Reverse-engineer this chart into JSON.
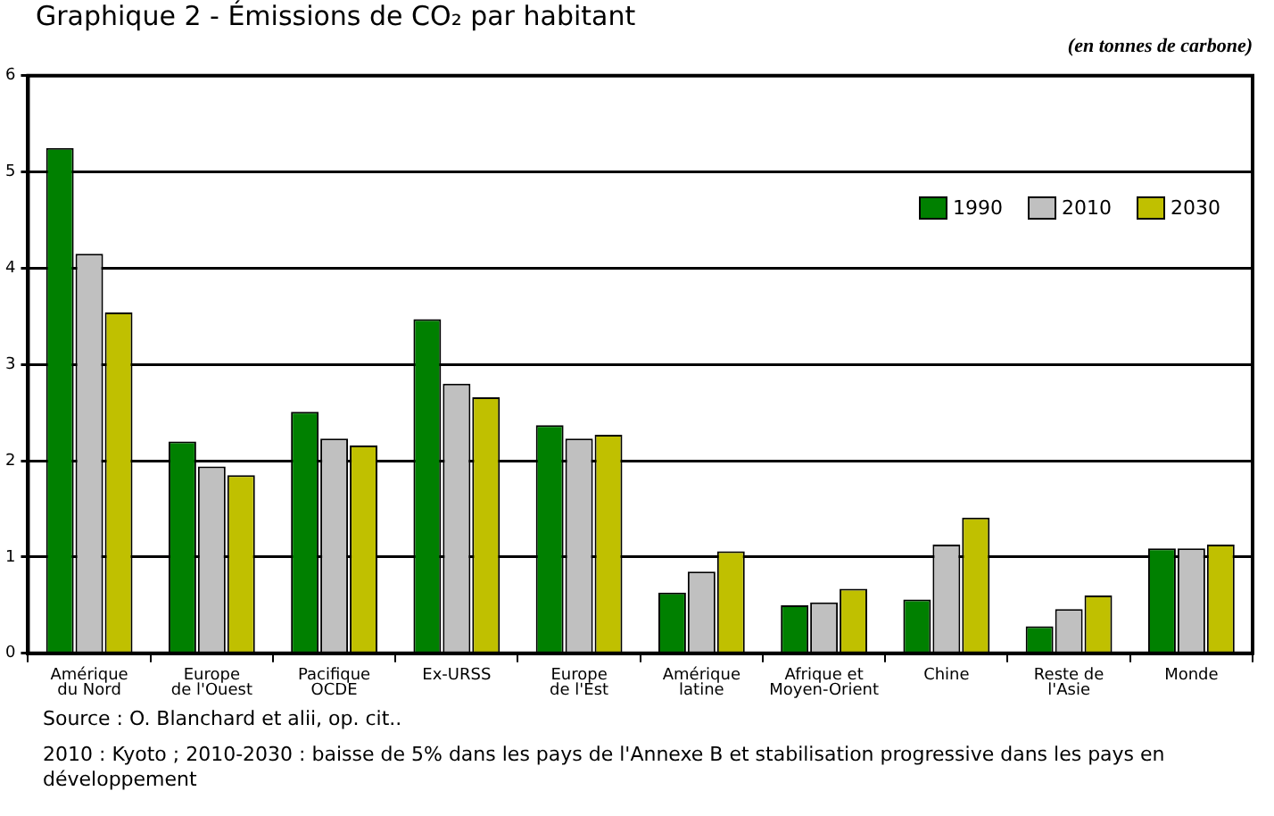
{
  "chart_data": {
    "type": "bar",
    "title": "Graphique 2 - Émissions de CO₂ par habitant",
    "subtitle": "(en tonnes de carbone)",
    "categories": [
      "Amérique\ndu Nord",
      "Europe\nde l'Ouest",
      "Pacifique\nOCDE",
      "Ex-URSS",
      "Europe\nde l'Est",
      "Amérique\nlatine",
      "Afrique et\nMoyen-Orient",
      "Chine",
      "Reste de\nl'Asie",
      "Monde"
    ],
    "series": [
      {
        "name": "1990",
        "color": "#008000",
        "values": [
          5.25,
          2.2,
          2.51,
          3.47,
          2.37,
          0.63,
          0.5,
          0.56,
          0.28,
          1.09
        ]
      },
      {
        "name": "2010",
        "color": "#c0c0c0",
        "values": [
          4.15,
          1.94,
          2.23,
          2.8,
          2.23,
          0.85,
          0.53,
          1.13,
          0.46,
          1.09
        ]
      },
      {
        "name": "2030",
        "color": "#c0c000",
        "values": [
          3.54,
          1.85,
          2.16,
          2.66,
          2.27,
          1.06,
          0.67,
          1.41,
          0.6,
          1.13
        ]
      }
    ],
    "ylim": [
      0,
      6
    ],
    "yticks": [
      0,
      1,
      2,
      3,
      4,
      5,
      6
    ],
    "grid": "y",
    "legend": "top right",
    "annotations": [
      "Source : O. Blanchard et alii, op. cit..",
      "2010 : Kyoto ; 2010-2030 : baisse de 5% dans les pays de l'Annexe B et stabilisation progressive dans les pays en développement"
    ]
  }
}
